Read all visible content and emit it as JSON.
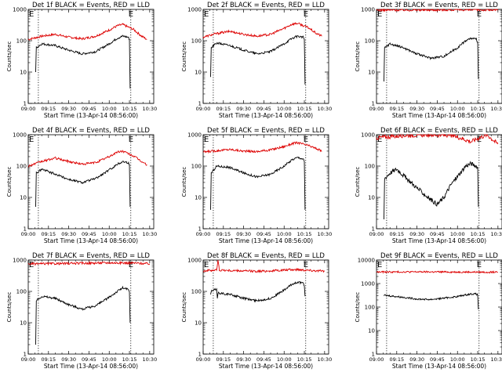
{
  "common": {
    "xlabel": "Start Time (13-Apr-14 08:56:00)",
    "ylabel": "Counts/sec",
    "x_tick_labels": [
      "09:00",
      "09:15",
      "09:30",
      "09:45",
      "10:00",
      "10:15",
      "10:30"
    ],
    "x_ticks_minutes": [
      0,
      15,
      30,
      45,
      60,
      75,
      90
    ],
    "xlim_minutes_after_0900": [
      0,
      93
    ],
    "y_scale": "log",
    "events_color": "#000000",
    "lld_color": "#dd0000",
    "marker_label": "E",
    "marker_lines_minutes": [
      7.5,
      76
    ]
  },
  "chart_data": [
    {
      "type": "line",
      "title": "Det 1f BLACK = Events, RED = LLD",
      "ylim": [
        1,
        1000
      ],
      "y_tick_labels": [
        "1",
        "10",
        "100",
        "1000"
      ],
      "series": [
        {
          "name": "Events",
          "x": [
            5.5,
            6,
            10,
            20,
            30,
            40,
            50,
            60,
            66,
            70,
            74,
            75,
            75.5
          ],
          "y": [
            10,
            60,
            80,
            70,
            50,
            38,
            45,
            80,
            120,
            140,
            130,
            110,
            3
          ]
        },
        {
          "name": "LLD",
          "x": [
            0,
            10,
            20,
            30,
            40,
            50,
            60,
            66,
            70,
            78,
            84,
            88
          ],
          "y": [
            110,
            140,
            160,
            130,
            115,
            140,
            220,
            300,
            330,
            230,
            140,
            110
          ]
        }
      ]
    },
    {
      "type": "line",
      "title": "Det 2f BLACK = Events, RED = LLD",
      "ylim": [
        1,
        1000
      ],
      "y_tick_labels": [
        "1",
        "10",
        "100",
        "1000"
      ],
      "series": [
        {
          "name": "Events",
          "x": [
            5.5,
            6,
            10,
            20,
            30,
            40,
            50,
            60,
            66,
            70,
            74,
            75,
            75.5
          ],
          "y": [
            7,
            60,
            85,
            70,
            50,
            38,
            45,
            80,
            120,
            140,
            130,
            110,
            4
          ]
        },
        {
          "name": "LLD",
          "x": [
            0,
            10,
            20,
            30,
            40,
            50,
            60,
            66,
            70,
            78,
            84,
            88
          ],
          "y": [
            130,
            170,
            200,
            160,
            140,
            160,
            250,
            340,
            360,
            260,
            170,
            140
          ]
        }
      ]
    },
    {
      "type": "line",
      "title": "Det 3f BLACK = Events, RED = LLD",
      "ylim": [
        1,
        1000
      ],
      "y_tick_labels": [
        "1",
        "10",
        "100",
        "1000"
      ],
      "series": [
        {
          "name": "Events",
          "x": [
            5.5,
            6,
            10,
            20,
            30,
            40,
            50,
            60,
            66,
            70,
            74,
            75,
            75.5
          ],
          "y": [
            5,
            60,
            80,
            60,
            38,
            28,
            32,
            60,
            100,
            120,
            110,
            90,
            6
          ]
        },
        {
          "name": "LLD",
          "x": [
            0,
            30,
            60,
            90
          ],
          "y": [
            950,
            960,
            970,
            960
          ]
        }
      ]
    },
    {
      "type": "line",
      "title": "Det 4f BLACK = Events, RED = LLD",
      "ylim": [
        1,
        1000
      ],
      "y_tick_labels": [
        "1",
        "10",
        "100",
        "1000"
      ],
      "series": [
        {
          "name": "Events",
          "x": [
            5.5,
            6,
            10,
            20,
            30,
            40,
            50,
            60,
            66,
            70,
            74,
            75,
            75.5
          ],
          "y": [
            5,
            60,
            80,
            55,
            38,
            30,
            40,
            75,
            115,
            140,
            130,
            110,
            5
          ]
        },
        {
          "name": "LLD",
          "x": [
            0,
            10,
            20,
            30,
            40,
            50,
            60,
            66,
            70,
            78,
            84,
            88
          ],
          "y": [
            100,
            140,
            180,
            140,
            115,
            130,
            200,
            280,
            300,
            210,
            140,
            110
          ]
        }
      ]
    },
    {
      "type": "line",
      "title": "Det 5f BLACK = Events, RED = LLD",
      "ylim": [
        1,
        1000
      ],
      "y_tick_labels": [
        "1",
        "10",
        "100",
        "1000"
      ],
      "series": [
        {
          "name": "Events",
          "x": [
            5.5,
            6,
            10,
            20,
            30,
            40,
            50,
            60,
            66,
            70,
            74,
            75,
            75.5
          ],
          "y": [
            4,
            60,
            100,
            90,
            60,
            45,
            55,
            100,
            160,
            190,
            170,
            140,
            4
          ]
        },
        {
          "name": "LLD",
          "x": [
            0,
            10,
            20,
            30,
            40,
            50,
            60,
            66,
            70,
            78,
            84,
            88
          ],
          "y": [
            280,
            310,
            340,
            300,
            290,
            330,
            420,
            520,
            560,
            450,
            360,
            300
          ]
        }
      ]
    },
    {
      "type": "line",
      "title": "Det 6f BLACK = Events, RED = LLD",
      "ylim": [
        1,
        1000
      ],
      "y_tick_labels": [
        "1",
        "10",
        "100",
        "1000"
      ],
      "series": [
        {
          "name": "Events",
          "x": [
            5.5,
            6,
            10,
            15,
            20,
            30,
            38,
            45,
            50,
            55,
            62,
            66,
            70,
            74,
            75,
            75.5
          ],
          "y": [
            2,
            40,
            60,
            80,
            50,
            20,
            10,
            6,
            10,
            25,
            60,
            100,
            120,
            100,
            90,
            5
          ]
        },
        {
          "name": "LLD",
          "x": [
            0,
            20,
            40,
            55,
            62,
            70,
            76,
            82,
            86,
            90
          ],
          "y": [
            800,
            950,
            1000,
            950,
            800,
            600,
            800,
            1000,
            700,
            500
          ]
        }
      ]
    },
    {
      "type": "line",
      "title": "Det 7f BLACK = Events, RED = LLD",
      "ylim": [
        1,
        1000
      ],
      "y_tick_labels": [
        "1",
        "10",
        "100",
        "1000"
      ],
      "series": [
        {
          "name": "Events",
          "x": [
            5.5,
            6,
            10,
            20,
            30,
            40,
            50,
            60,
            66,
            70,
            74,
            75,
            75.5
          ],
          "y": [
            2,
            50,
            70,
            60,
            38,
            27,
            35,
            65,
            100,
            130,
            115,
            95,
            10
          ]
        },
        {
          "name": "LLD",
          "x": [
            0,
            30,
            60,
            80,
            90
          ],
          "y": [
            750,
            780,
            820,
            800,
            760
          ]
        }
      ]
    },
    {
      "type": "line",
      "title": "Det 8f BLACK = Events, RED = LLD",
      "ylim": [
        1,
        1000
      ],
      "y_tick_labels": [
        "1",
        "10",
        "100",
        "1000"
      ],
      "series": [
        {
          "name": "Events",
          "x": [
            5.5,
            6,
            10,
            10.5,
            11,
            20,
            30,
            40,
            50,
            60,
            66,
            70,
            74,
            75,
            75.5
          ],
          "y": [
            80,
            100,
            120,
            60,
            90,
            80,
            60,
            50,
            60,
            110,
            170,
            200,
            180,
            150,
            70
          ]
        },
        {
          "name": "LLD",
          "x": [
            0,
            5,
            10,
            11,
            12,
            20,
            30,
            40,
            50,
            60,
            70,
            80,
            90
          ],
          "y": [
            450,
            470,
            480,
            1000,
            480,
            460,
            450,
            440,
            450,
            480,
            500,
            470,
            440
          ]
        }
      ]
    },
    {
      "type": "line",
      "title": "Det 9f BLACK = Events, RED = LLD",
      "ylim": [
        1,
        10000
      ],
      "y_tick_labels": [
        "1",
        "10",
        "100",
        "1000",
        "10000"
      ],
      "series": [
        {
          "name": "Events",
          "x": [
            5.5,
            6,
            10,
            20,
            30,
            40,
            50,
            60,
            66,
            70,
            74,
            75,
            75.5
          ],
          "y": [
            300,
            320,
            300,
            260,
            220,
            210,
            240,
            280,
            330,
            360,
            360,
            320,
            80
          ]
        },
        {
          "name": "LLD",
          "x": [
            0,
            30,
            60,
            90
          ],
          "y": [
            3100,
            3150,
            3100,
            3050
          ]
        }
      ]
    }
  ]
}
